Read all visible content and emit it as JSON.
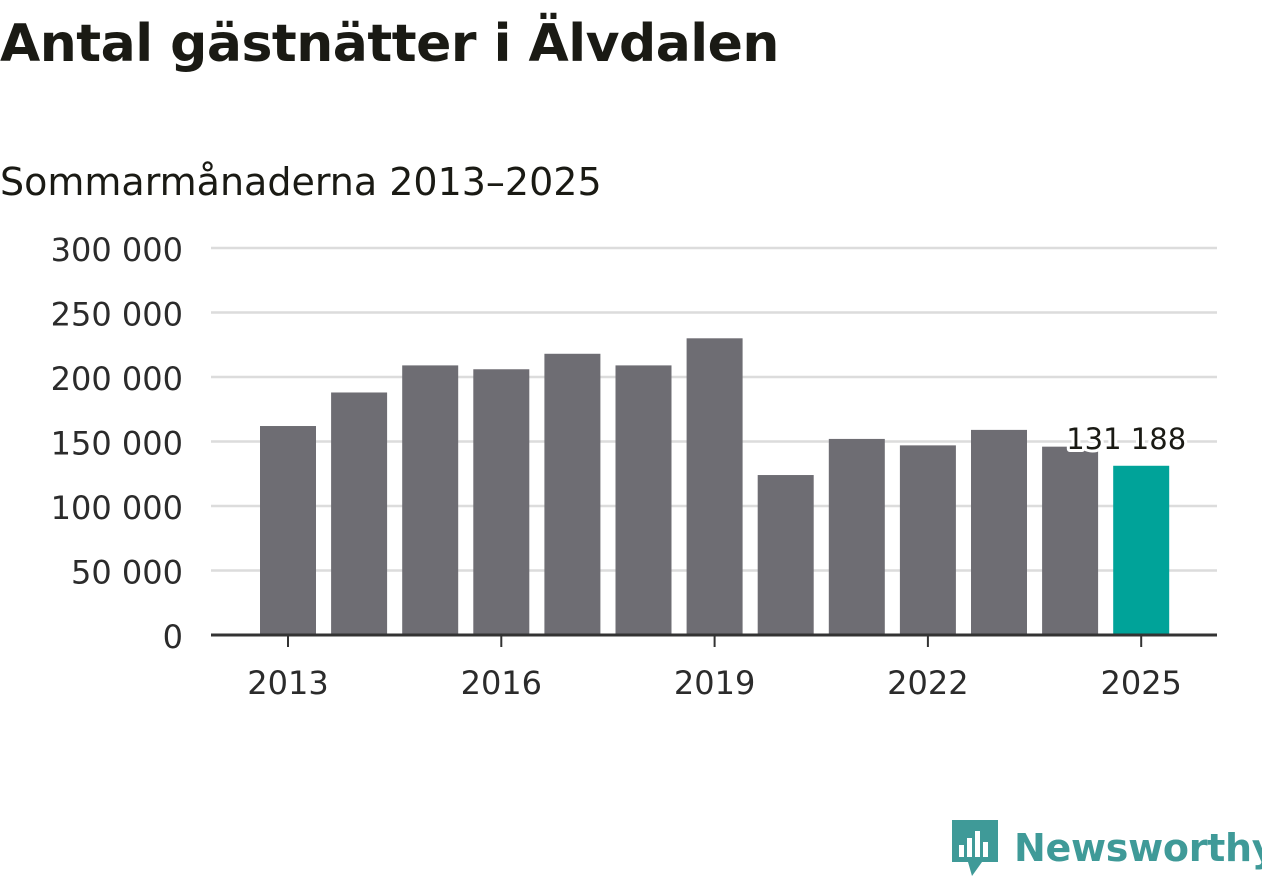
{
  "title": "Antal gästnätter i Älvdalen",
  "subtitle": "Sommarmånaderna 2013–2025",
  "chart_data": {
    "type": "bar",
    "title": "Antal gästnätter i Älvdalen",
    "subtitle": "Sommarmånaderna 2013–2025",
    "categories": [
      "2013",
      "2014",
      "2015",
      "2016",
      "2017",
      "2018",
      "2019",
      "2020",
      "2021",
      "2022",
      "2023",
      "2024",
      "2025"
    ],
    "values": [
      162000,
      188000,
      209000,
      206000,
      218000,
      209000,
      230000,
      124000,
      152000,
      147000,
      159000,
      146000,
      131188
    ],
    "ylim": [
      0,
      300000
    ],
    "yticks": [
      0,
      50000,
      100000,
      150000,
      200000,
      250000,
      300000
    ],
    "ytick_labels": [
      "0",
      "50 000",
      "100 000",
      "150 000",
      "200 000",
      "250 000",
      "300 000"
    ],
    "xtick_labels": [
      "2013",
      "2016",
      "2019",
      "2022",
      "2025"
    ],
    "grid": true,
    "bar_color": "#6e6d73",
    "highlight_color": "#00a399",
    "highlight_category": "2025",
    "data_label": "131 188"
  },
  "branding": {
    "logo_text": "Newsworthy",
    "logo_color": "#3f9a98",
    "logo_icon": "newsworthy-chart-icon"
  }
}
